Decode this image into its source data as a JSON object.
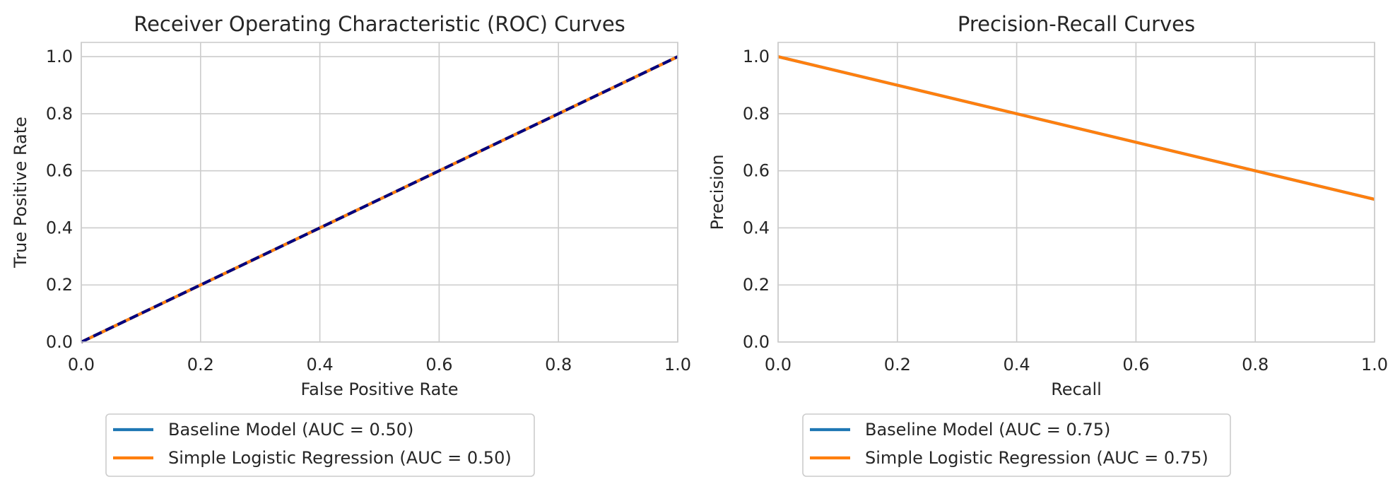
{
  "chart_data": [
    {
      "type": "line",
      "title": "Receiver Operating Characteristic (ROC) Curves",
      "xlabel": "False Positive Rate",
      "ylabel": "True Positive Rate",
      "xlim": [
        0.0,
        1.0
      ],
      "ylim": [
        0.0,
        1.05
      ],
      "xticks": [
        "0.0",
        "0.2",
        "0.4",
        "0.6",
        "0.8",
        "1.0"
      ],
      "yticks": [
        "0.0",
        "0.2",
        "0.4",
        "0.6",
        "0.8",
        "1.0"
      ],
      "grid": true,
      "legend_placement": "below",
      "series": [
        {
          "name": "Baseline Model (AUC = 0.50)",
          "color": "#1f77b4",
          "style": "solid",
          "x": [
            0.0,
            1.0
          ],
          "y": [
            0.0,
            1.0
          ],
          "in_legend": true
        },
        {
          "name": "Simple Logistic Regression (AUC = 0.50)",
          "color": "#ff7f0e",
          "style": "solid",
          "x": [
            0.0,
            1.0
          ],
          "y": [
            0.0,
            1.0
          ],
          "in_legend": true
        },
        {
          "color": "#000080",
          "style": "dashed",
          "x": [
            0.0,
            1.0
          ],
          "y": [
            0.0,
            1.0
          ],
          "in_legend": false
        }
      ]
    },
    {
      "type": "line",
      "title": "Precision-Recall Curves",
      "xlabel": "Recall",
      "ylabel": "Precision",
      "xlim": [
        0.0,
        1.0
      ],
      "ylim": [
        0.0,
        1.05
      ],
      "xticks": [
        "0.0",
        "0.2",
        "0.4",
        "0.6",
        "0.8",
        "1.0"
      ],
      "yticks": [
        "0.0",
        "0.2",
        "0.4",
        "0.6",
        "0.8",
        "1.0"
      ],
      "grid": true,
      "legend_placement": "below",
      "series": [
        {
          "name": "Baseline Model (AUC = 0.75)",
          "color": "#1f77b4",
          "style": "solid",
          "x": [
            0.0,
            1.0
          ],
          "y": [
            1.0,
            0.5
          ],
          "in_legend": true
        },
        {
          "name": "Simple Logistic Regression (AUC = 0.75)",
          "color": "#ff7f0e",
          "style": "solid",
          "x": [
            0.0,
            1.0
          ],
          "y": [
            1.0,
            0.5
          ],
          "in_legend": true
        }
      ]
    }
  ]
}
